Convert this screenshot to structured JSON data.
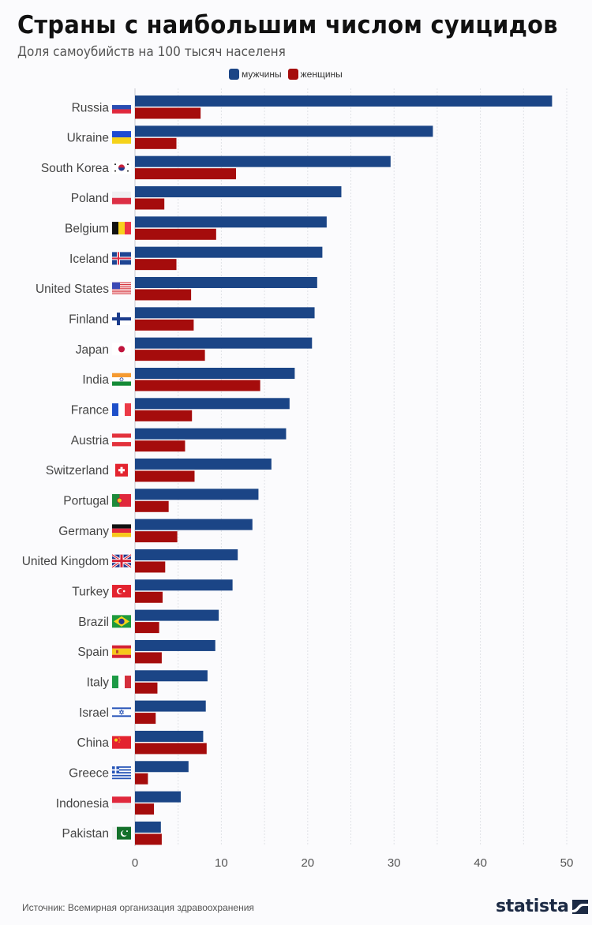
{
  "chart_data": {
    "type": "bar",
    "orientation": "horizontal",
    "title": "Страны с наибольшим числом суицидов",
    "subtitle": "Доля самоубийств на 100 тысяч населеня",
    "xlabel": "",
    "ylabel": "",
    "xlim": [
      0,
      50
    ],
    "xticks": [
      0,
      10,
      20,
      30,
      40,
      50
    ],
    "grid": true,
    "gridline_step": 5,
    "legend_position": "top-center",
    "categories": [
      "Russia",
      "Ukraine",
      "South Korea",
      "Poland",
      "Belgium",
      "Iceland",
      "United States",
      "Finland",
      "Japan",
      "India",
      "France",
      "Austria",
      "Switzerland",
      "Portugal",
      "Germany",
      "United Kingdom",
      "Turkey",
      "Brazil",
      "Spain",
      "Italy",
      "Israel",
      "China",
      "Greece",
      "Indonesia",
      "Pakistan"
    ],
    "flags": [
      "flag-russia",
      "flag-ukraine",
      "flag-south-korea",
      "flag-poland",
      "flag-belgium",
      "flag-iceland",
      "flag-united-states",
      "flag-finland",
      "flag-japan",
      "flag-india",
      "flag-france",
      "flag-austria",
      "flag-switzerland",
      "flag-portugal",
      "flag-germany",
      "flag-united-kingdom",
      "flag-turkey",
      "flag-brazil",
      "flag-spain",
      "flag-italy",
      "flag-israel",
      "flag-china",
      "flag-greece",
      "flag-indonesia",
      "flag-pakistan"
    ],
    "series": [
      {
        "name": "мужчины",
        "color": "#1b4586",
        "values": [
          48.3,
          34.5,
          29.6,
          23.9,
          22.2,
          21.7,
          21.1,
          20.8,
          20.5,
          18.5,
          17.9,
          17.5,
          15.8,
          14.3,
          13.6,
          11.9,
          11.3,
          9.7,
          9.3,
          8.4,
          8.2,
          7.9,
          6.2,
          5.3,
          3.0
        ]
      },
      {
        "name": "женщины",
        "color": "#a50c0c",
        "values": [
          7.6,
          4.8,
          11.7,
          3.4,
          9.4,
          4.8,
          6.5,
          6.8,
          8.1,
          14.5,
          6.6,
          5.8,
          6.9,
          3.9,
          4.9,
          3.5,
          3.2,
          2.8,
          3.1,
          2.6,
          2.4,
          8.3,
          1.5,
          2.2,
          3.1
        ]
      }
    ]
  },
  "footer": {
    "source": "Источник: Всемирная организация здравоохранения",
    "brand": "statista"
  },
  "colors": {
    "male": "#1b4586",
    "female": "#a50c0c",
    "logo": "#1c2a44"
  }
}
